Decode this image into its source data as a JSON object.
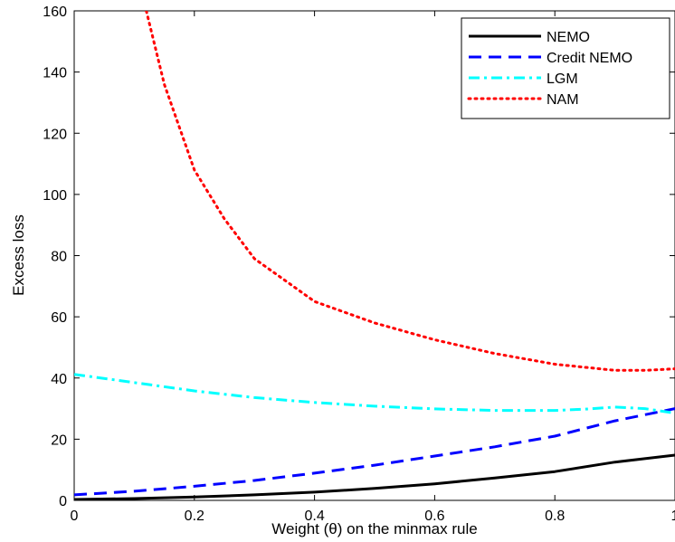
{
  "chart_data": {
    "type": "line",
    "title": "",
    "xlabel": "Weight (θ) on the minmax rule",
    "ylabel": "Excess loss",
    "xlim": [
      0,
      1
    ],
    "ylim": [
      0,
      160
    ],
    "grid": false,
    "legend_position": "top-right",
    "xticks": [
      "0",
      "0.2",
      "0.4",
      "0.6",
      "0.8",
      "1"
    ],
    "yticks": [
      "0",
      "20",
      "40",
      "60",
      "80",
      "100",
      "120",
      "140",
      "160"
    ],
    "series": [
      {
        "name": "NEMO",
        "color": "#000000",
        "style": "solid",
        "x": [
          0,
          0.1,
          0.2,
          0.3,
          0.4,
          0.5,
          0.6,
          0.7,
          0.8,
          0.9,
          1.0
        ],
        "y": [
          0.3,
          0.6,
          1.1,
          1.8,
          2.7,
          3.9,
          5.4,
          7.3,
          9.4,
          12.5,
          14.8
        ]
      },
      {
        "name": "Credit NEMO",
        "color": "#0000ff",
        "style": "dashed",
        "x": [
          0,
          0.1,
          0.2,
          0.3,
          0.4,
          0.5,
          0.6,
          0.7,
          0.8,
          0.9,
          1.0
        ],
        "y": [
          1.8,
          3.0,
          4.6,
          6.5,
          8.9,
          11.5,
          14.5,
          17.5,
          21.0,
          26.0,
          30.0
        ]
      },
      {
        "name": "LGM",
        "color": "#00ffff",
        "style": "dashdot",
        "x": [
          0,
          0.1,
          0.2,
          0.3,
          0.4,
          0.5,
          0.6,
          0.7,
          0.8,
          0.85,
          0.9,
          0.95,
          1.0
        ],
        "y": [
          41.2,
          38.5,
          35.8,
          33.6,
          32.0,
          30.8,
          29.9,
          29.4,
          29.4,
          29.8,
          30.5,
          30.0,
          28.5
        ]
      },
      {
        "name": "NAM",
        "color": "#ff0000",
        "style": "dotted",
        "x": [
          0.12,
          0.15,
          0.2,
          0.25,
          0.3,
          0.35,
          0.4,
          0.5,
          0.6,
          0.7,
          0.8,
          0.9,
          0.95,
          1.0
        ],
        "y": [
          160,
          136,
          108,
          92,
          79,
          72,
          65,
          58,
          52.5,
          48,
          44.5,
          42.5,
          42.5,
          43
        ]
      }
    ]
  }
}
